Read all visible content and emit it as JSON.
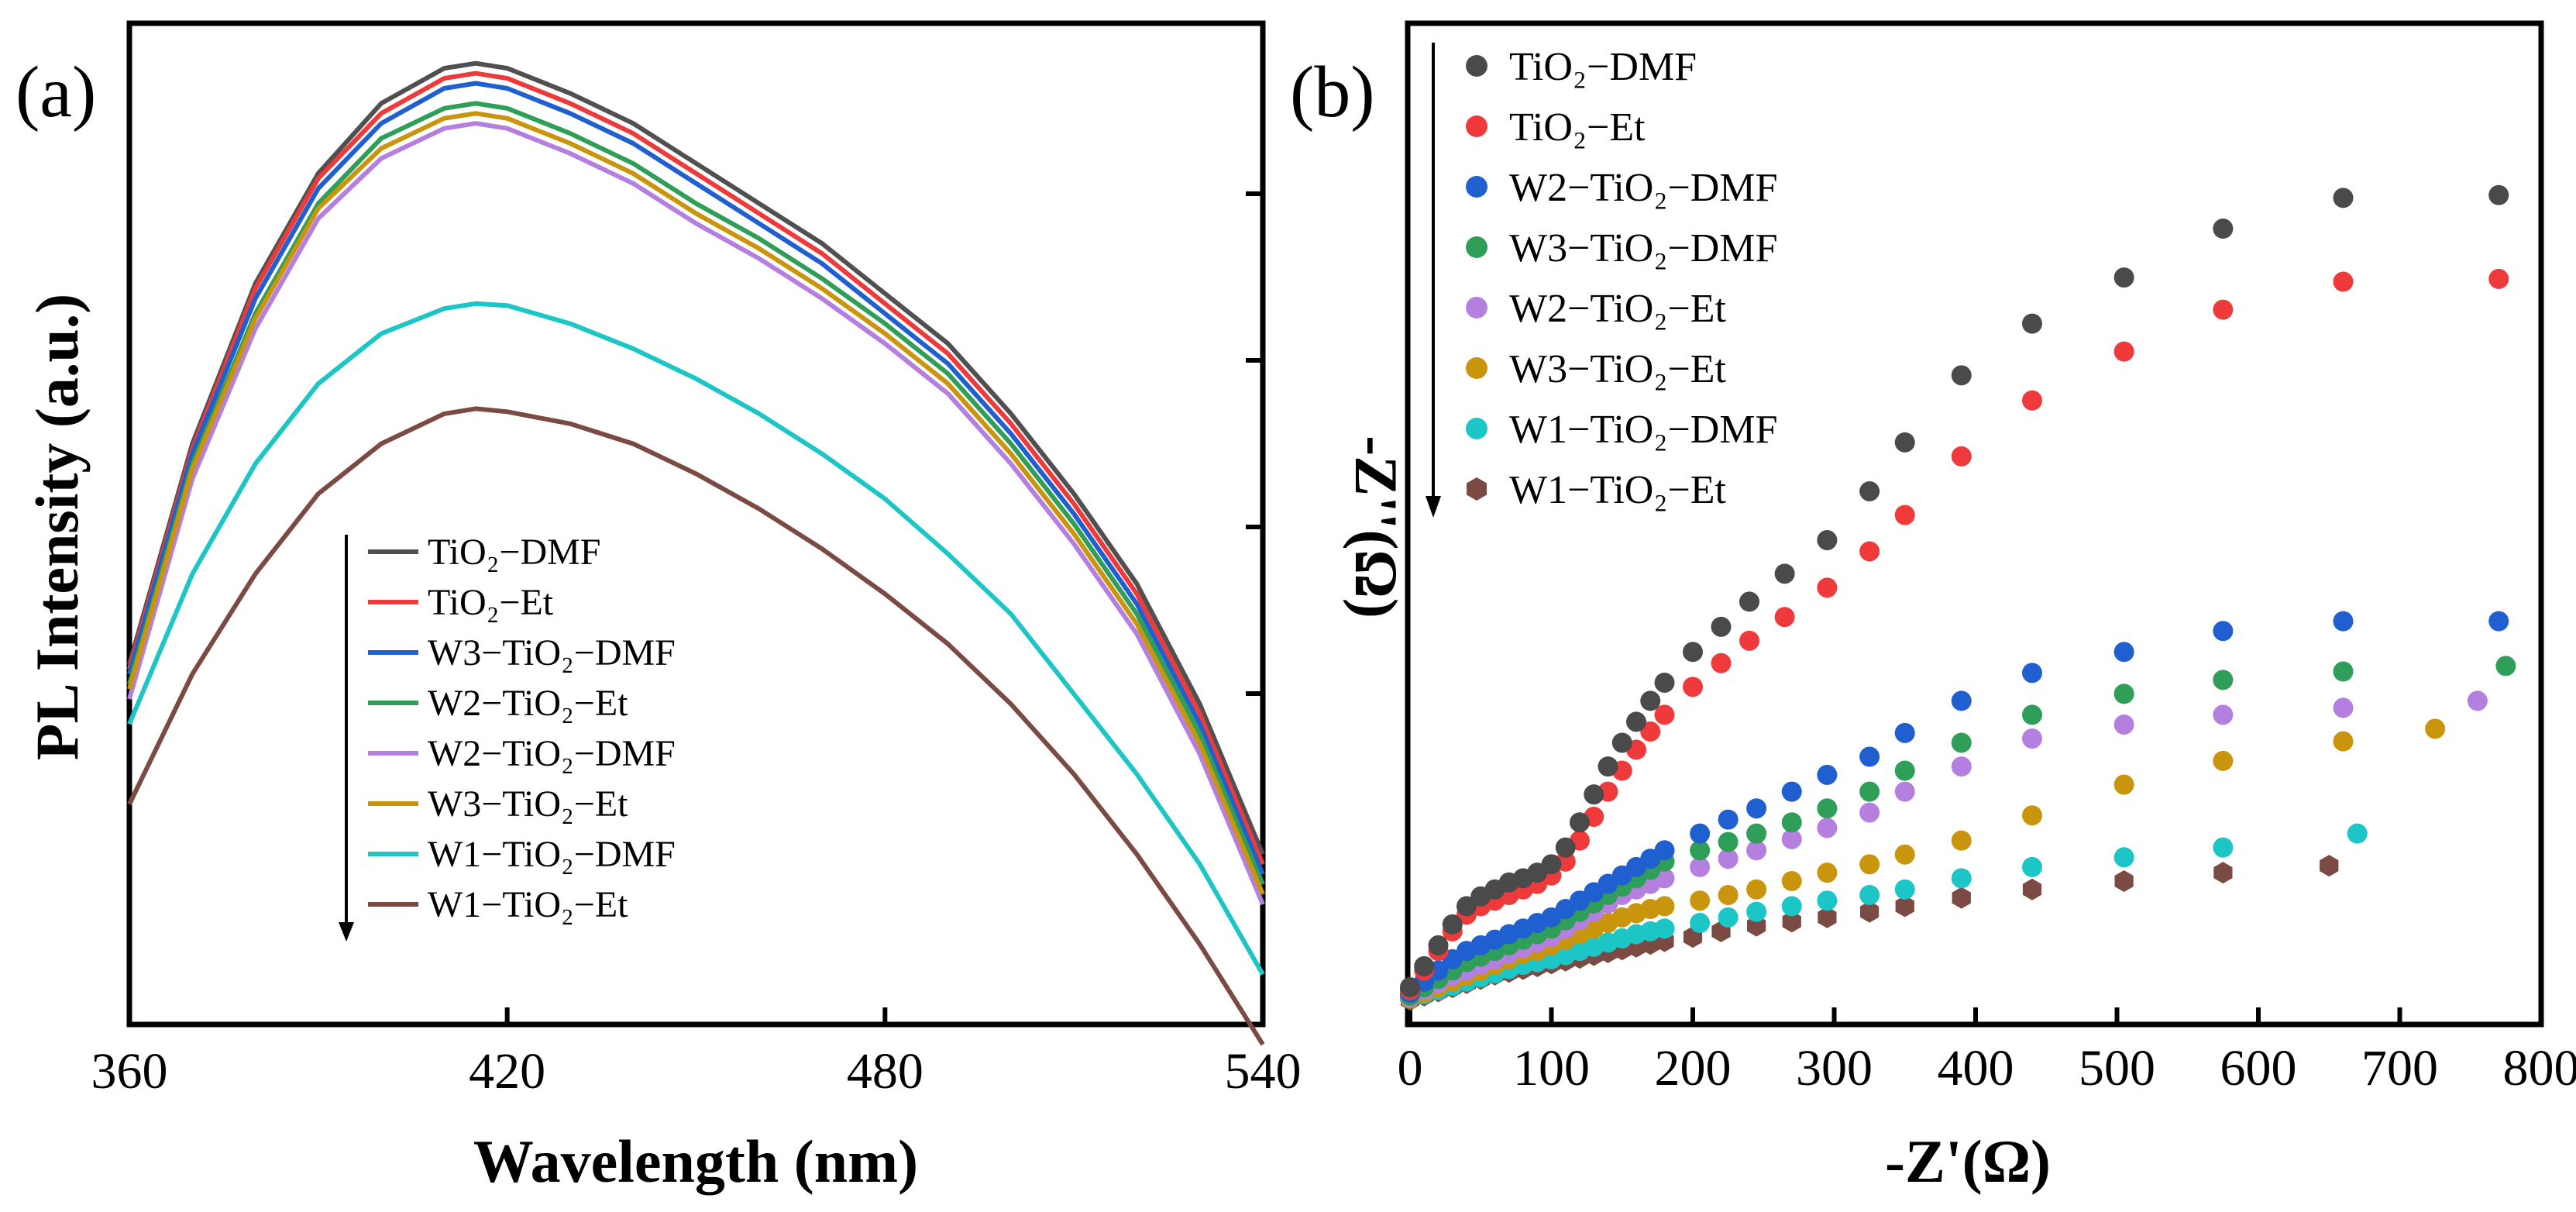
{
  "chart_data": [
    {
      "panel": "(a)",
      "type": "line",
      "title": "",
      "xlabel": "Wavelength (nm)",
      "ylabel": "PL Intensity (a.u.)",
      "xlim": [
        360,
        540
      ],
      "ylim": [
        0,
        1
      ],
      "xticks": [
        "360",
        "420",
        "480",
        "540"
      ],
      "grid": false,
      "legend_position": "lower-left",
      "x": [
        360,
        370,
        380,
        390,
        400,
        410,
        415,
        420,
        430,
        440,
        450,
        460,
        470,
        480,
        490,
        500,
        510,
        520,
        530,
        540
      ],
      "series": [
        {
          "name": "TiO₂−DMF",
          "color": "#505050",
          "values": [
            0.36,
            0.58,
            0.74,
            0.85,
            0.92,
            0.955,
            0.96,
            0.955,
            0.93,
            0.9,
            0.86,
            0.82,
            0.78,
            0.73,
            0.68,
            0.61,
            0.53,
            0.44,
            0.32,
            0.17
          ]
        },
        {
          "name": "TiO₂−Et",
          "color": "#ee3a3a",
          "values": [
            0.355,
            0.575,
            0.735,
            0.845,
            0.91,
            0.945,
            0.95,
            0.945,
            0.92,
            0.89,
            0.85,
            0.81,
            0.77,
            0.72,
            0.67,
            0.6,
            0.52,
            0.43,
            0.31,
            0.16
          ]
        },
        {
          "name": "W3−TiO₂−DMF",
          "color": "#1f5fd0",
          "values": [
            0.35,
            0.57,
            0.725,
            0.835,
            0.9,
            0.935,
            0.94,
            0.935,
            0.91,
            0.88,
            0.84,
            0.8,
            0.76,
            0.71,
            0.66,
            0.59,
            0.51,
            0.42,
            0.3,
            0.15
          ]
        },
        {
          "name": "W2−TiO₂−Et",
          "color": "#2e9e58",
          "values": [
            0.34,
            0.56,
            0.71,
            0.82,
            0.885,
            0.915,
            0.92,
            0.915,
            0.89,
            0.86,
            0.82,
            0.785,
            0.745,
            0.7,
            0.65,
            0.58,
            0.5,
            0.41,
            0.29,
            0.14
          ]
        },
        {
          "name": "W2−TiO₂−DMF",
          "color": "#b57fe0",
          "values": [
            0.325,
            0.545,
            0.695,
            0.805,
            0.865,
            0.895,
            0.9,
            0.895,
            0.87,
            0.84,
            0.8,
            0.765,
            0.725,
            0.68,
            0.63,
            0.56,
            0.48,
            0.39,
            0.27,
            0.12
          ]
        },
        {
          "name": "W3−TiO₂−Et",
          "color": "#c9950c",
          "values": [
            0.335,
            0.555,
            0.705,
            0.815,
            0.875,
            0.905,
            0.91,
            0.905,
            0.88,
            0.85,
            0.81,
            0.775,
            0.735,
            0.69,
            0.64,
            0.57,
            0.49,
            0.4,
            0.28,
            0.13
          ]
        },
        {
          "name": "W1−TiO₂−DMF",
          "color": "#1cc6c6",
          "values": [
            0.3,
            0.45,
            0.56,
            0.64,
            0.69,
            0.715,
            0.72,
            0.718,
            0.7,
            0.675,
            0.645,
            0.61,
            0.57,
            0.525,
            0.47,
            0.41,
            0.33,
            0.25,
            0.16,
            0.05
          ]
        },
        {
          "name": "W1−TiO₂−Et",
          "color": "#7b4a42",
          "values": [
            0.22,
            0.35,
            0.45,
            0.53,
            0.58,
            0.61,
            0.615,
            0.612,
            0.6,
            0.58,
            0.55,
            0.515,
            0.475,
            0.43,
            0.38,
            0.32,
            0.25,
            0.17,
            0.08,
            -0.02
          ]
        }
      ]
    },
    {
      "panel": "(b)",
      "type": "scatter",
      "title": "",
      "xlabel": "-Z'(Ω)",
      "ylabel": "-Z''(Ω)",
      "xlim": [
        0,
        800
      ],
      "ylim": [
        0,
        700
      ],
      "xticks": [
        "0",
        "100",
        "200",
        "300",
        "400",
        "500",
        "600",
        "700",
        "800"
      ],
      "grid": false,
      "legend_position": "top-left",
      "series": [
        {
          "name": "TiO₂−DMF",
          "color": "#4a4a4a",
          "marker": "circle",
          "x": [
            0,
            10,
            20,
            30,
            40,
            50,
            60,
            70,
            80,
            90,
            100,
            110,
            120,
            130,
            140,
            150,
            160,
            170,
            180,
            200,
            220,
            240,
            265,
            295,
            325,
            350,
            390,
            440,
            505,
            575,
            660,
            770
          ],
          "y": [
            10,
            25,
            40,
            55,
            68,
            75,
            80,
            85,
            88,
            92,
            98,
            110,
            128,
            148,
            168,
            185,
            200,
            215,
            228,
            250,
            268,
            286,
            306,
            330,
            365,
            400,
            448,
            485,
            518,
            553,
            575,
            577
          ]
        },
        {
          "name": "TiO₂−Et",
          "color": "#ee3a3a",
          "marker": "circle",
          "x": [
            0,
            10,
            20,
            30,
            40,
            50,
            60,
            70,
            80,
            90,
            100,
            110,
            120,
            130,
            140,
            150,
            160,
            170,
            180,
            200,
            220,
            240,
            265,
            295,
            325,
            350,
            390,
            440,
            505,
            575,
            660,
            770
          ],
          "y": [
            8,
            22,
            36,
            50,
            62,
            68,
            72,
            76,
            80,
            84,
            90,
            100,
            115,
            132,
            150,
            165,
            180,
            193,
            205,
            225,
            242,
            258,
            275,
            296,
            322,
            348,
            390,
            430,
            465,
            495,
            515,
            517
          ]
        },
        {
          "name": "W2−TiO₂−DMF",
          "color": "#1f5fd0",
          "marker": "circle",
          "x": [
            0,
            10,
            20,
            30,
            40,
            50,
            60,
            70,
            80,
            90,
            100,
            110,
            120,
            130,
            140,
            150,
            160,
            170,
            180,
            205,
            225,
            245,
            270,
            295,
            325,
            350,
            390,
            440,
            505,
            575,
            660,
            770
          ],
          "y": [
            6,
            14,
            22,
            30,
            36,
            40,
            44,
            48,
            52,
            56,
            60,
            66,
            72,
            78,
            84,
            90,
            96,
            102,
            108,
            120,
            130,
            138,
            150,
            162,
            175,
            192,
            215,
            235,
            250,
            265,
            272,
            272
          ]
        },
        {
          "name": "W3−TiO₂−DMF",
          "color": "#2e9e58",
          "marker": "circle",
          "x": [
            0,
            10,
            20,
            30,
            40,
            50,
            60,
            70,
            80,
            90,
            100,
            110,
            120,
            130,
            140,
            150,
            160,
            170,
            180,
            205,
            225,
            245,
            270,
            295,
            325,
            350,
            390,
            440,
            505,
            575,
            660,
            775
          ],
          "y": [
            4,
            10,
            16,
            22,
            28,
            32,
            36,
            40,
            44,
            48,
            52,
            58,
            64,
            70,
            76,
            82,
            88,
            94,
            100,
            108,
            114,
            120,
            128,
            138,
            150,
            165,
            185,
            205,
            220,
            230,
            236,
            240
          ]
        },
        {
          "name": "W2−TiO₂−Et",
          "color": "#b57fe0",
          "marker": "circle",
          "x": [
            0,
            10,
            20,
            30,
            40,
            50,
            60,
            70,
            80,
            90,
            100,
            110,
            120,
            130,
            140,
            150,
            160,
            170,
            180,
            205,
            225,
            245,
            270,
            295,
            325,
            350,
            390,
            440,
            505,
            575,
            660,
            755
          ],
          "y": [
            3,
            8,
            13,
            18,
            22,
            26,
            30,
            34,
            38,
            42,
            46,
            52,
            58,
            64,
            70,
            76,
            80,
            84,
            88,
            96,
            102,
            108,
            116,
            124,
            135,
            150,
            168,
            188,
            198,
            205,
            210,
            215
          ]
        },
        {
          "name": "W3−TiO₂−Et",
          "color": "#c9950c",
          "marker": "circle",
          "x": [
            0,
            10,
            20,
            30,
            40,
            50,
            60,
            70,
            80,
            90,
            100,
            110,
            120,
            130,
            140,
            150,
            160,
            170,
            180,
            205,
            225,
            245,
            270,
            295,
            325,
            350,
            390,
            440,
            505,
            575,
            660,
            725
          ],
          "y": [
            2,
            6,
            10,
            14,
            18,
            22,
            26,
            30,
            34,
            36,
            40,
            44,
            48,
            52,
            56,
            60,
            63,
            66,
            68,
            72,
            76,
            80,
            86,
            92,
            98,
            105,
            115,
            133,
            155,
            172,
            186,
            195
          ]
        },
        {
          "name": "W1−TiO₂−DMF",
          "color": "#1cc6c6",
          "marker": "circle",
          "x": [
            0,
            10,
            20,
            30,
            40,
            50,
            60,
            70,
            80,
            90,
            100,
            110,
            120,
            130,
            140,
            150,
            160,
            170,
            180,
            205,
            225,
            245,
            270,
            295,
            325,
            350,
            390,
            440,
            505,
            575,
            670
          ],
          "y": [
            2,
            5,
            8,
            11,
            14,
            17,
            20,
            23,
            26,
            28,
            30,
            33,
            36,
            39,
            42,
            45,
            48,
            50,
            52,
            56,
            60,
            64,
            68,
            72,
            76,
            80,
            88,
            96,
            103,
            110,
            120
          ]
        },
        {
          "name": "W1−TiO₂−Et",
          "color": "#7b4a42",
          "marker": "hexagon",
          "x": [
            0,
            10,
            20,
            30,
            40,
            50,
            60,
            70,
            80,
            90,
            100,
            110,
            120,
            130,
            140,
            150,
            160,
            170,
            180,
            200,
            220,
            245,
            270,
            295,
            325,
            350,
            390,
            440,
            505,
            575,
            650
          ],
          "y": [
            1,
            4,
            7,
            10,
            13,
            16,
            19,
            21,
            23,
            25,
            27,
            29,
            31,
            33,
            35,
            37,
            39,
            41,
            43,
            46,
            50,
            54,
            57,
            60,
            64,
            68,
            74,
            80,
            86,
            92,
            97
          ]
        }
      ]
    }
  ]
}
